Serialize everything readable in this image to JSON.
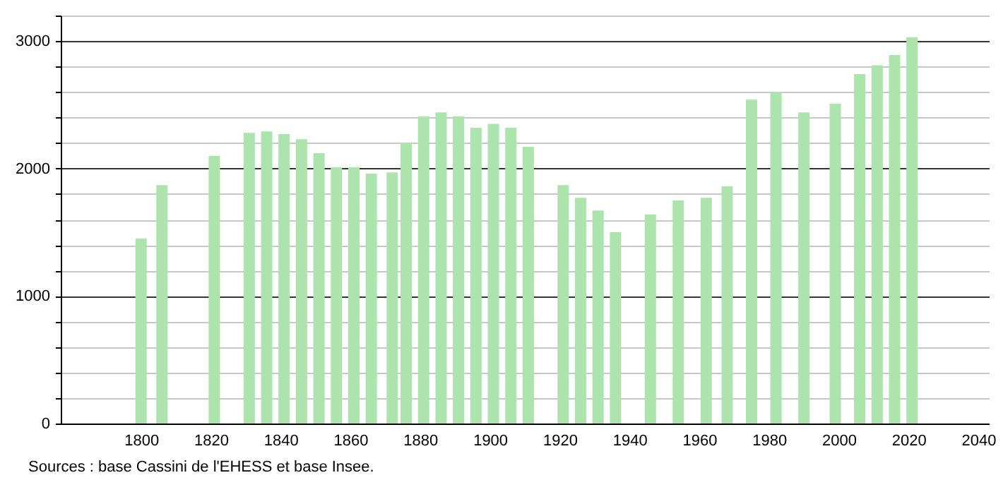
{
  "chart_data": {
    "type": "bar",
    "x": [
      1800,
      1806,
      1821,
      1831,
      1836,
      1841,
      1846,
      1851,
      1856,
      1861,
      1866,
      1872,
      1876,
      1881,
      1886,
      1891,
      1896,
      1901,
      1906,
      1911,
      1921,
      1926,
      1931,
      1936,
      1946,
      1954,
      1962,
      1968,
      1975,
      1982,
      1990,
      1999,
      2006,
      2011,
      2016,
      2021
    ],
    "values": [
      1450,
      1870,
      2100,
      2280,
      2290,
      2270,
      2230,
      2120,
      2010,
      2010,
      1960,
      1970,
      2200,
      2410,
      2440,
      2410,
      2320,
      2350,
      2320,
      2170,
      1870,
      1770,
      1670,
      1500,
      1640,
      1750,
      1770,
      1860,
      2540,
      2600,
      2440,
      2510,
      2740,
      2810,
      2890,
      3030
    ],
    "color": "#ade3ad",
    "xlim": [
      1779,
      2041
    ],
    "xticks": [
      1800,
      1820,
      1840,
      1860,
      1880,
      1900,
      1920,
      1940,
      1960,
      1980,
      2000,
      2020,
      2040
    ],
    "ylim": [
      0,
      3200
    ],
    "yticks": [
      0,
      {
        "value": 200,
        "label": null
      },
      {
        "value": 400,
        "label": null
      },
      {
        "value": 600,
        "label": null
      },
      {
        "value": 800,
        "label": null
      },
      1000,
      {
        "value": 1200,
        "label": null
      },
      {
        "value": 1400,
        "label": null
      },
      {
        "value": 1600,
        "label": null
      },
      {
        "value": 1800,
        "label": null
      },
      2000,
      {
        "value": 2200,
        "label": null
      },
      {
        "value": 2400,
        "label": null
      },
      {
        "value": 2600,
        "label": null
      },
      {
        "value": 2800,
        "label": null
      },
      3000,
      {
        "value": 3200,
        "label": null
      }
    ],
    "grid": "y",
    "annotations": [
      "Sources : base Cassini de l'EHESS et base Insee."
    ]
  }
}
